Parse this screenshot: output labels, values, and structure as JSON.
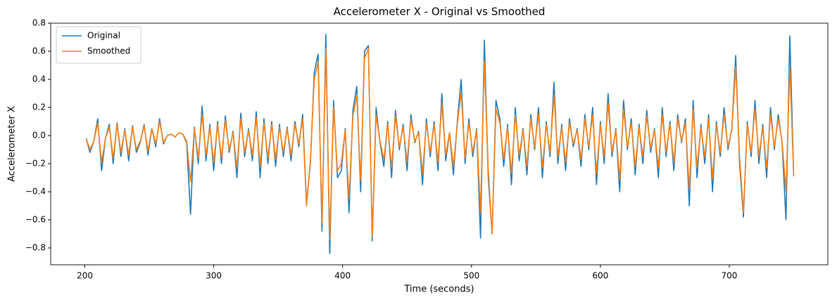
{
  "chart_data": {
    "type": "line",
    "title": "Accelerometer X - Original vs Smoothed",
    "x_label": "Time (seconds)",
    "y_label": "Accelerometer X",
    "legend": "upper left",
    "xlim": [
      173.5,
      776.5
    ],
    "ylim": [
      -0.92,
      0.8
    ],
    "xticks": [
      200,
      300,
      400,
      500,
      600,
      700
    ],
    "yticks": [
      {
        "value": -0.8,
        "label": "−0.8"
      },
      {
        "value": -0.6,
        "label": "−0.6"
      },
      {
        "value": -0.4,
        "label": "−0.4"
      },
      {
        "value": -0.2,
        "label": "−0.2"
      },
      {
        "value": 0,
        "label": "0.0"
      },
      0.2,
      0.4,
      0.6,
      0.8
    ],
    "x": [
      201,
      204,
      207,
      210,
      213,
      216,
      219,
      222,
      225,
      228,
      231,
      234,
      237,
      240,
      243,
      246,
      249,
      252,
      255,
      258,
      261,
      264,
      267,
      270,
      273,
      276,
      279,
      282,
      285,
      288,
      291,
      294,
      297,
      300,
      303,
      306,
      309,
      312,
      315,
      318,
      321,
      324,
      327,
      330,
      333,
      336,
      339,
      342,
      345,
      348,
      351,
      354,
      357,
      360,
      363,
      366,
      369,
      372,
      375,
      378,
      381,
      384,
      387,
      390,
      393,
      396,
      399,
      402,
      405,
      408,
      411,
      414,
      417,
      420,
      423,
      426,
      429,
      432,
      435,
      438,
      441,
      444,
      447,
      450,
      453,
      456,
      459,
      462,
      465,
      468,
      471,
      474,
      477,
      480,
      483,
      486,
      489,
      492,
      495,
      498,
      501,
      504,
      507,
      510,
      513,
      516,
      519,
      522,
      525,
      528,
      531,
      534,
      537,
      540,
      543,
      546,
      549,
      552,
      555,
      558,
      561,
      564,
      567,
      570,
      573,
      576,
      579,
      582,
      585,
      588,
      591,
      594,
      597,
      600,
      603,
      606,
      609,
      612,
      615,
      618,
      621,
      624,
      627,
      630,
      633,
      636,
      639,
      642,
      645,
      648,
      651,
      654,
      657,
      660,
      663,
      666,
      669,
      672,
      675,
      678,
      681,
      684,
      687,
      690,
      693,
      696,
      699,
      702,
      705,
      708,
      711,
      714,
      717,
      720,
      723,
      726,
      729,
      732,
      735,
      738,
      741,
      744,
      747,
      750
    ],
    "series": [
      {
        "name": "Original",
        "color": "#1f77b4",
        "values": [
          -0.02,
          -0.12,
          -0.04,
          0.12,
          -0.25,
          -0.02,
          0.08,
          -0.2,
          0.09,
          -0.15,
          0.05,
          -0.18,
          0.07,
          -0.12,
          -0.05,
          0.08,
          -0.14,
          0.05,
          -0.08,
          0.12,
          -0.06,
          0.0,
          0.01,
          -0.01,
          0.02,
          0.01,
          -0.05,
          -0.56,
          0.06,
          -0.2,
          0.21,
          -0.18,
          0.08,
          -0.25,
          0.1,
          -0.2,
          0.14,
          -0.12,
          0.03,
          -0.3,
          0.16,
          -0.15,
          0.05,
          -0.18,
          0.17,
          -0.3,
          0.12,
          -0.2,
          0.1,
          -0.22,
          0.08,
          -0.15,
          0.06,
          -0.18,
          0.1,
          -0.08,
          0.15,
          -0.48,
          -0.2,
          0.45,
          0.58,
          -0.68,
          0.72,
          -0.84,
          0.25,
          -0.3,
          -0.25,
          0.05,
          -0.55,
          0.18,
          0.35,
          -0.4,
          0.6,
          0.64,
          -0.75,
          0.2,
          -0.05,
          -0.22,
          0.1,
          -0.3,
          0.18,
          -0.1,
          0.08,
          -0.25,
          0.15,
          -0.05,
          0.03,
          -0.35,
          0.12,
          -0.15,
          0.1,
          -0.25,
          0.3,
          -0.18,
          0.02,
          -0.28,
          0.1,
          0.4,
          -0.2,
          0.12,
          -0.15,
          0.05,
          -0.73,
          0.68,
          -0.3,
          -0.7,
          0.25,
          0.12,
          -0.22,
          0.08,
          -0.35,
          0.2,
          -0.18,
          0.05,
          -0.28,
          0.15,
          -0.1,
          0.2,
          -0.3,
          0.1,
          -0.15,
          0.38,
          -0.2,
          0.08,
          -0.25,
          0.12,
          -0.08,
          0.05,
          -0.22,
          0.15,
          -0.1,
          0.2,
          -0.35,
          0.1,
          -0.2,
          0.3,
          -0.15,
          0.05,
          -0.4,
          0.25,
          -0.1,
          0.12,
          -0.28,
          0.08,
          -0.2,
          0.18,
          -0.12,
          0.05,
          -0.3,
          0.2,
          -0.15,
          0.1,
          -0.25,
          0.15,
          -0.05,
          0.12,
          -0.5,
          0.25,
          -0.3,
          0.08,
          -0.2,
          0.15,
          -0.4,
          0.1,
          -0.15,
          0.2,
          -0.1,
          0.05,
          0.57,
          -0.2,
          -0.58,
          0.1,
          -0.15,
          0.25,
          -0.2,
          0.08,
          -0.3,
          0.2,
          -0.1,
          0.15,
          -0.05,
          -0.6,
          0.71,
          -0.29
        ]
      },
      {
        "name": "Smoothed",
        "color": "#ff7f0e",
        "values": [
          -0.02,
          -0.1,
          -0.04,
          0.09,
          -0.19,
          -0.02,
          0.06,
          -0.16,
          0.08,
          -0.12,
          0.04,
          -0.14,
          0.06,
          -0.1,
          -0.04,
          0.07,
          -0.11,
          0.05,
          -0.06,
          0.1,
          -0.05,
          0.0,
          0.01,
          -0.01,
          0.02,
          0.01,
          -0.04,
          -0.33,
          0.05,
          -0.16,
          0.15,
          -0.14,
          0.06,
          -0.19,
          0.08,
          -0.16,
          0.11,
          -0.1,
          0.02,
          -0.23,
          0.12,
          -0.12,
          0.04,
          -0.14,
          0.13,
          -0.22,
          0.09,
          -0.16,
          0.08,
          -0.17,
          0.06,
          -0.12,
          0.05,
          -0.14,
          0.08,
          -0.06,
          0.12,
          -0.5,
          -0.18,
          0.4,
          0.52,
          -0.62,
          0.62,
          -0.74,
          0.2,
          -0.25,
          -0.2,
          0.04,
          -0.45,
          0.14,
          0.28,
          -0.32,
          0.55,
          0.62,
          -0.72,
          0.15,
          -0.04,
          -0.17,
          0.08,
          -0.23,
          0.14,
          -0.08,
          0.06,
          -0.19,
          0.12,
          -0.04,
          0.02,
          -0.27,
          0.09,
          -0.12,
          0.08,
          -0.19,
          0.23,
          -0.14,
          0.02,
          -0.22,
          0.08,
          0.31,
          -0.16,
          0.09,
          -0.12,
          0.04,
          -0.55,
          0.53,
          -0.24,
          -0.7,
          0.19,
          0.09,
          -0.17,
          0.06,
          -0.27,
          0.15,
          -0.14,
          0.04,
          -0.22,
          0.12,
          -0.08,
          0.15,
          -0.23,
          0.08,
          -0.12,
          0.29,
          -0.15,
          0.06,
          -0.19,
          0.09,
          -0.06,
          0.04,
          -0.17,
          0.12,
          -0.08,
          0.15,
          -0.27,
          0.08,
          -0.15,
          0.23,
          -0.12,
          0.04,
          -0.31,
          0.19,
          -0.08,
          0.09,
          -0.22,
          0.06,
          -0.15,
          0.14,
          -0.09,
          0.04,
          -0.23,
          0.15,
          -0.12,
          0.08,
          -0.19,
          0.12,
          -0.04,
          0.09,
          -0.38,
          0.19,
          -0.23,
          0.06,
          -0.15,
          0.12,
          -0.31,
          0.08,
          -0.12,
          0.15,
          -0.08,
          0.04,
          0.49,
          -0.15,
          -0.55,
          0.08,
          -0.12,
          0.19,
          -0.15,
          0.06,
          -0.23,
          0.15,
          -0.08,
          0.12,
          -0.04,
          -0.4,
          0.49,
          -0.29
        ]
      }
    ]
  }
}
